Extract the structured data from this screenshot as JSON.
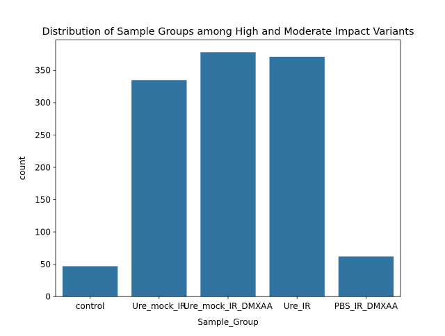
{
  "chart_data": {
    "type": "bar",
    "title": "Distribution of Sample Groups among High and Moderate Impact Variants",
    "xlabel": "Sample_Group",
    "ylabel": "count",
    "categories": [
      "control",
      "Ure_mock_IR",
      "Ure_mock_IR_DMXAA",
      "Ure_IR",
      "PBS_IR_DMXAA"
    ],
    "values": [
      47,
      335,
      378,
      371,
      62
    ],
    "ylim": [
      0,
      397
    ],
    "yticks": [
      "0",
      "50",
      "100",
      "150",
      "200",
      "250",
      "300",
      "350"
    ],
    "grid": false,
    "legend": "none",
    "bar_color": "#3274a1"
  }
}
